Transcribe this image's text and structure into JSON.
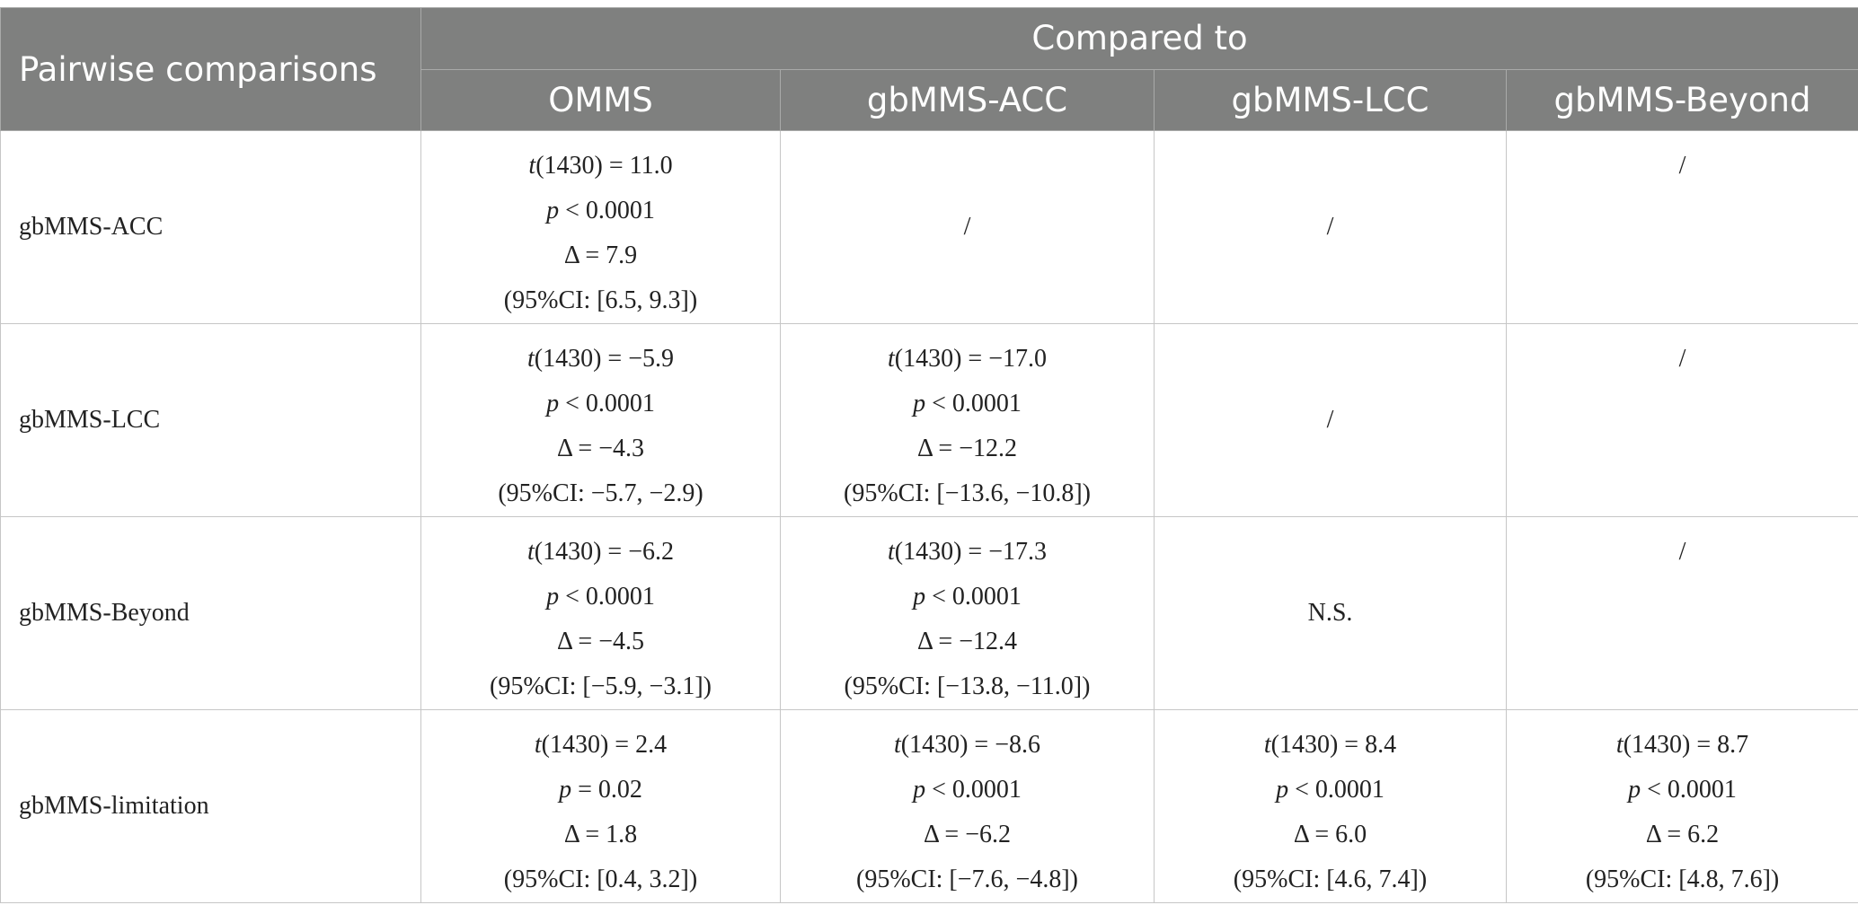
{
  "header": {
    "corner": "Pairwise comparisons",
    "group": "Compared to",
    "columns": [
      "OMMS",
      "gbMMS-ACC",
      "gbMMS-LCC",
      "gbMMS-Beyond"
    ]
  },
  "rows": [
    {
      "label": "gbMMS-ACC",
      "cells": [
        {
          "t": "(1430) = 11.0",
          "p": " < 0.0001",
          "d": "Δ = 7.9",
          "ci": "(95%CI: [6.5, 9.3])"
        },
        {
          "text": "/"
        },
        {
          "text": "/"
        },
        {
          "text": "/"
        }
      ]
    },
    {
      "label": "gbMMS-LCC",
      "cells": [
        {
          "t": "(1430) = −5.9",
          "p": " < 0.0001",
          "d": "Δ = −4.3",
          "ci": "(95%CI: −5.7, −2.9)"
        },
        {
          "t": "(1430) = −17.0",
          "p": " < 0.0001",
          "d": "Δ = −12.2",
          "ci": "(95%CI: [−13.6, −10.8])"
        },
        {
          "text": "/"
        },
        {
          "text": "/"
        }
      ]
    },
    {
      "label": "gbMMS-Beyond",
      "cells": [
        {
          "t": "(1430) = −6.2",
          "p": " < 0.0001",
          "d": "Δ = −4.5",
          "ci": "(95%CI: [−5.9, −3.1])"
        },
        {
          "t": "(1430) = −17.3",
          "p": " < 0.0001",
          "d": "Δ = −12.4",
          "ci": "(95%CI: [−13.8, −11.0])"
        },
        {
          "text": "N.S."
        },
        {
          "text": "/"
        }
      ]
    },
    {
      "label": "gbMMS-limitation",
      "cells": [
        {
          "t": "(1430) = 2.4",
          "p": " = 0.02",
          "d": "Δ = 1.8",
          "ci": "(95%CI: [0.4, 3.2])"
        },
        {
          "t": "(1430) = −8.6",
          "p": " < 0.0001",
          "d": "Δ = −6.2",
          "ci": "(95%CI: [−7.6, −4.8])"
        },
        {
          "t": "(1430) = 8.4",
          "p": " < 0.0001",
          "d": "Δ = 6.0",
          "ci": "(95%CI: [4.6, 7.4])"
        },
        {
          "t": "(1430) = 8.7",
          "p": " < 0.0001",
          "d": "Δ = 6.2",
          "ci": "(95%CI: [4.8, 7.6])"
        }
      ]
    }
  ],
  "symbols": {
    "t": "t",
    "p": "p"
  },
  "colors": {
    "header_bg": "#7f807f",
    "header_text": "#ffffff",
    "border": "#c6c6c6"
  }
}
